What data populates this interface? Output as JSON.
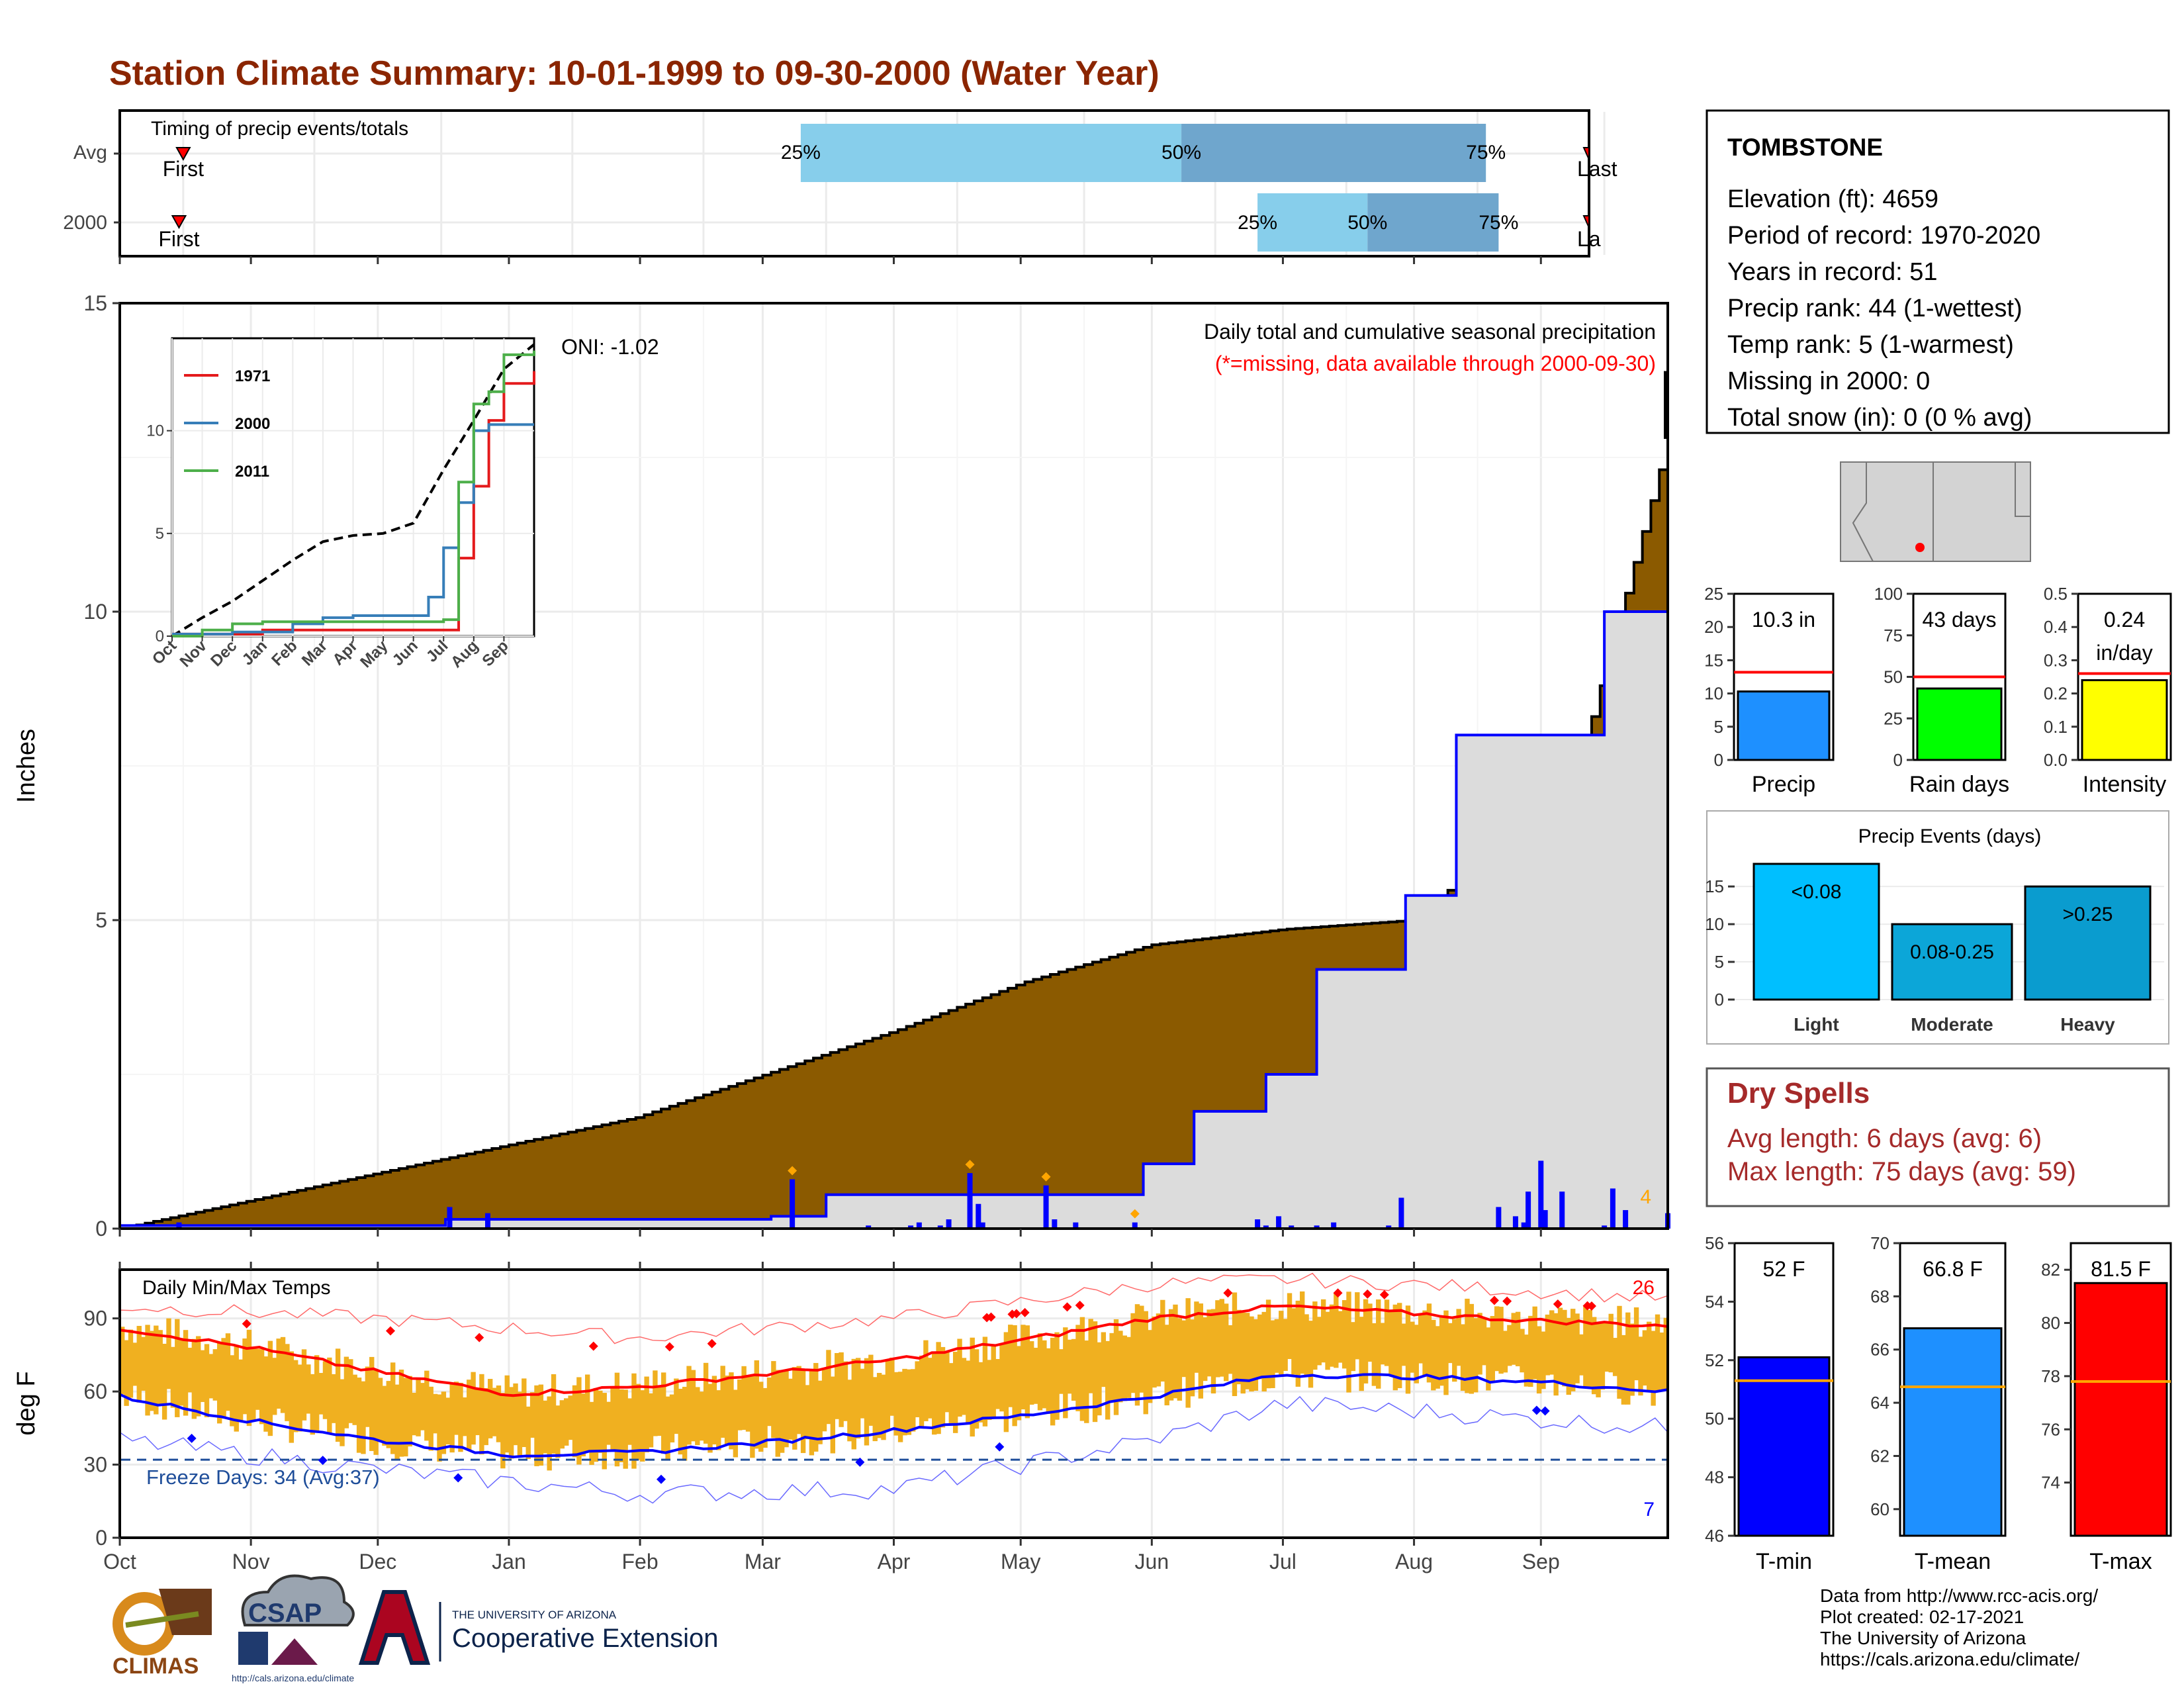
{
  "title": "Station Climate Summary: 10-01-1999 to 09-30-2000 (Water Year)",
  "colors": {
    "title": "#8B2500",
    "season_fill": "#8B5A00",
    "cumulative_line": "#0000FF",
    "avg_fill": "#DCDCDC",
    "quartile_light": "#87CEEB",
    "quartile_dark": "#6FA6CD",
    "marker": "#FF0000",
    "temp_bar": "#F0B020",
    "tmin": "#0000FF",
    "tmax": "#FF0000",
    "rain_days": "#00FF00",
    "intensity": "#FFFF00",
    "precip": "#1E90FF",
    "events": "#00BFFF",
    "dryspell": "#A52A2A"
  },
  "timing": {
    "label": "Timing of precip events/totals",
    "rows": [
      {
        "label": "Avg",
        "q25": "25%",
        "q50": "50%",
        "q75": "75%",
        "first": "First",
        "last": "Last",
        "q25_day": 161,
        "q50_day": 251,
        "q75_day": 323,
        "first_day": 15,
        "last_day": 364
      },
      {
        "label": "2000",
        "q25": "25%",
        "q50": "50%",
        "q75": "75%",
        "first": "First",
        "last": "La",
        "q25_day": 269,
        "q50_day": 295,
        "q75_day": 326,
        "first_day": 14,
        "last_day": 373
      }
    ]
  },
  "precip_panel": {
    "ylabel": "Inches",
    "yticks": [
      "0",
      "5",
      "10",
      "15"
    ],
    "heading": "Daily total and cumulative seasonal precipitation",
    "subheading": "(*=missing, data available through 2000-09-30)",
    "oni": "ONI: -1.02",
    "corner_count": "4"
  },
  "inset": {
    "yticks": [
      "0",
      "5",
      "10"
    ],
    "xticks": [
      "Oct",
      "Nov",
      "Dec",
      "Jan",
      "Feb",
      "Mar",
      "Apr",
      "May",
      "Jun",
      "Jul",
      "Aug",
      "Sep"
    ],
    "legend": [
      {
        "name": "1971",
        "color": "#E41A1C"
      },
      {
        "name": "2000",
        "color": "#377EB8"
      },
      {
        "name": "2011",
        "color": "#4DAF4A"
      }
    ]
  },
  "temp_panel": {
    "ylabel": "deg F",
    "yticks": [
      "0",
      "30",
      "60",
      "90"
    ],
    "label": "Daily Min/Max Temps",
    "freeze": "Freeze Days: 34 (Avg:37)",
    "count_high": "26",
    "count_low": "7"
  },
  "months": [
    "Oct",
    "Nov",
    "Dec",
    "Jan",
    "Feb",
    "Mar",
    "Apr",
    "May",
    "Jun",
    "Jul",
    "Aug",
    "Sep"
  ],
  "station": {
    "name": "TOMBSTONE",
    "lines": [
      "Elevation (ft): 4659",
      "Period of record: 1970-2020",
      "Years in record: 51",
      "Precip rank: 44 (1-wettest)",
      "Temp rank: 5 (1-warmest)",
      "Missing in 2000: 0",
      "Total snow (in): 0 (0 % avg)"
    ]
  },
  "summary_bars": [
    {
      "label": "Precip",
      "value_text": "10.3 in",
      "value": 10.3,
      "avg": 13.2,
      "yticks": [
        "0",
        "5",
        "10",
        "15",
        "20",
        "25"
      ],
      "ymax": 25,
      "color": "#1E90FF"
    },
    {
      "label": "Rain days",
      "value_text": "43 days",
      "value": 43,
      "avg": 50,
      "yticks": [
        "0",
        "25",
        "50",
        "75",
        "100"
      ],
      "ymax": 100,
      "color": "#00FF00"
    },
    {
      "label": "Intensity",
      "value_text": "0.24",
      "value_unit": "in/day",
      "value": 0.24,
      "avg": 0.26,
      "yticks": [
        "0.0",
        "0.1",
        "0.2",
        "0.3",
        "0.4",
        "0.5"
      ],
      "ymax": 0.5,
      "color": "#FFFF00"
    }
  ],
  "precip_events": {
    "title": "Precip Events (days)",
    "yticks": [
      "0",
      "5",
      "10",
      "15"
    ],
    "bars": [
      {
        "name": "Light",
        "label": "<0.08",
        "value": 18,
        "color": "#00BFFF"
      },
      {
        "name": "Moderate",
        "label": "0.08-0.25",
        "value": 10,
        "color": "#0CA6D8"
      },
      {
        "name": "Heavy",
        "label": ">0.25",
        "value": 15,
        "color": "#0A9CCF"
      }
    ]
  },
  "dry_spells": {
    "title": "Dry Spells",
    "avg_line": "Avg length: 6 days (avg: 6)",
    "max_line": "Max length: 75 days (avg: 59)"
  },
  "temp_bars": [
    {
      "label": "T-min",
      "value_text": "52 F",
      "value": 52.1,
      "avg": 51.3,
      "ymin": 46,
      "ymax": 56,
      "yticks": [
        "46",
        "48",
        "50",
        "52",
        "54",
        "56"
      ],
      "color": "#0000FF"
    },
    {
      "label": "T-mean",
      "value_text": "66.8 F",
      "value": 66.8,
      "avg": 64.6,
      "ymin": 59,
      "ymax": 70,
      "yticks": [
        "60",
        "62",
        "64",
        "66",
        "68",
        "70"
      ],
      "color": "#1E90FF"
    },
    {
      "label": "T-max",
      "value_text": "81.5 F",
      "value": 81.5,
      "avg": 77.8,
      "ymin": 72,
      "ymax": 83,
      "yticks": [
        "74",
        "76",
        "78",
        "80",
        "82"
      ],
      "color": "#FF0000"
    }
  ],
  "credits": [
    "Data from http://www.rcc-acis.org/",
    "Plot created: 02-17-2021",
    "The University of Arizona",
    "https://cals.arizona.edu/climate/"
  ],
  "logos": {
    "climas": "CLIMAS",
    "csap": "CSAP",
    "csap_url": "http://cals.arizona.edu/climate",
    "ua_top": "THE UNIVERSITY OF ARIZONA",
    "ua_bottom": "Cooperative Extension"
  },
  "chart_data": [
    {
      "type": "area",
      "title": "Daily total and cumulative seasonal precipitation",
      "ylabel": "Inches",
      "ylim": [
        0,
        15
      ],
      "xticks": [
        "Oct",
        "Nov",
        "Dec",
        "Jan",
        "Feb",
        "Mar",
        "Apr",
        "May",
        "Jun",
        "Jul",
        "Aug",
        "Sep"
      ],
      "series": [
        {
          "name": "avg cumulative",
          "x_day": [
            0,
            61,
            122,
            183,
            214,
            244,
            275,
            306,
            344,
            366
          ],
          "values": [
            0,
            0.9,
            1.8,
            3.2,
            4.0,
            4.6,
            4.85,
            5.0,
            7.3,
            12.8
          ]
        },
        {
          "name": "2000 cumulative",
          "x_day": [
            0,
            77,
            154,
            167,
            242,
            254,
            271,
            283,
            304,
            316,
            351,
            366
          ],
          "values": [
            0.05,
            0.15,
            0.2,
            0.55,
            1.05,
            1.9,
            2.5,
            4.2,
            5.4,
            8.0,
            10.0,
            10.3
          ]
        }
      ],
      "daily_bars": {
        "x_day": [
          14,
          78,
          87,
          159,
          166,
          177,
          187,
          189,
          194,
          196,
          201,
          203,
          204,
          219,
          221,
          226,
          240,
          269,
          271,
          274,
          277,
          283,
          287,
          300,
          303,
          326,
          330,
          332,
          333,
          336,
          337,
          341,
          351,
          353,
          356,
          366
        ],
        "values": [
          0.1,
          0.35,
          0.25,
          0.8,
          0.02,
          0.05,
          0.05,
          0.1,
          0.05,
          0.15,
          0.9,
          0.4,
          0.1,
          0.7,
          0.15,
          0.1,
          0.1,
          0.15,
          0.05,
          0.2,
          0.05,
          0.05,
          0.1,
          0.05,
          0.5,
          0.35,
          0.2,
          0.1,
          0.6,
          1.1,
          0.3,
          0.6,
          0.05,
          0.65,
          0.3,
          0.25
        ]
      }
    },
    {
      "type": "line",
      "title": "",
      "xticks": [
        "Oct",
        "Nov",
        "Dec",
        "Jan",
        "Feb",
        "Mar",
        "Apr",
        "May",
        "Jun",
        "Jul",
        "Aug",
        "Sep"
      ],
      "ylim": [
        0,
        14.5
      ],
      "series": [
        {
          "name": "avg",
          "x_month": [
            0,
            1,
            2,
            3,
            4,
            5,
            6,
            7,
            8,
            9,
            10,
            11,
            12
          ],
          "values": [
            0,
            0.9,
            1.7,
            2.7,
            3.7,
            4.6,
            4.9,
            5.0,
            5.5,
            8.1,
            10.5,
            13.0,
            14.2
          ]
        },
        {
          "name": "1971",
          "x_month": [
            0,
            1,
            2,
            3,
            4,
            5,
            6,
            7,
            8,
            8.3,
            8.7,
            9,
            9.5,
            10,
            10.5,
            11,
            12
          ],
          "values": [
            0.1,
            0.1,
            0.1,
            0.3,
            0.3,
            0.3,
            0.3,
            0.3,
            0.3,
            0.3,
            0.3,
            0.3,
            3.8,
            7.3,
            10.5,
            12.3,
            12.9
          ]
        },
        {
          "name": "2000",
          "x_month": [
            0,
            1,
            2,
            3,
            4,
            5,
            6,
            7,
            8,
            8.5,
            9,
            9.5,
            10,
            10.5,
            11,
            12
          ],
          "values": [
            0.1,
            0.1,
            0.2,
            0.2,
            0.6,
            0.9,
            1.0,
            1.0,
            1.0,
            1.9,
            4.3,
            6.5,
            10.0,
            10.3,
            10.3,
            10.3
          ]
        },
        {
          "name": "2011",
          "x_month": [
            0,
            1,
            2,
            3,
            4,
            5,
            6,
            7,
            8,
            8.5,
            9,
            9.5,
            10,
            10.5,
            11,
            12
          ],
          "values": [
            0,
            0.3,
            0.6,
            0.7,
            0.7,
            0.7,
            0.7,
            0.7,
            0.7,
            0.7,
            0.8,
            7.5,
            11.3,
            11.9,
            13.7,
            13.9
          ]
        }
      ]
    },
    {
      "type": "line",
      "title": "Daily Min/Max Temps",
      "ylabel": "deg F",
      "ylim": [
        0,
        110
      ],
      "xticks": [
        "Oct",
        "Nov",
        "Dec",
        "Jan",
        "Feb",
        "Mar",
        "Apr",
        "May",
        "Jun",
        "Jul",
        "Aug",
        "Sep"
      ],
      "series": [
        {
          "name": "avg max",
          "x_day": [
            0,
            31,
            61,
            92,
            123,
            152,
            183,
            213,
            244,
            275,
            306,
            335,
            366
          ],
          "values": [
            86,
            78,
            68,
            59,
            62,
            67,
            73,
            81,
            90,
            95,
            92,
            89,
            87
          ]
        },
        {
          "name": "avg min",
          "x_day": [
            0,
            31,
            61,
            92,
            123,
            152,
            183,
            213,
            244,
            275,
            306,
            335,
            366
          ],
          "values": [
            58,
            48,
            40,
            34,
            35,
            39,
            44,
            50,
            58,
            67,
            66,
            64,
            60
          ]
        },
        {
          "name": "record max",
          "x_day": [
            0,
            61,
            122,
            183,
            244,
            275,
            306,
            366
          ],
          "values": [
            95,
            90,
            82,
            90,
            104,
            106,
            104,
            98
          ]
        },
        {
          "name": "record min",
          "x_day": [
            0,
            61,
            122,
            183,
            244,
            275,
            306,
            366
          ],
          "values": [
            40,
            28,
            18,
            20,
            40,
            55,
            52,
            45
          ]
        }
      ],
      "freeze_threshold": 32
    },
    {
      "type": "bar",
      "title": "Precip Events (days)",
      "categories": [
        "Light",
        "Moderate",
        "Heavy"
      ],
      "values": [
        18,
        10,
        15
      ],
      "ylim": [
        0,
        18
      ]
    },
    {
      "type": "bar",
      "categories": [
        "Precip",
        "Rain days",
        "Intensity"
      ],
      "series": [
        {
          "name": "",
          "values": [
            10.3,
            43,
            0.24
          ]
        }
      ]
    },
    {
      "type": "bar",
      "categories": [
        "T-min",
        "T-mean",
        "T-max"
      ],
      "series": [
        {
          "name": "",
          "values": [
            52.1,
            66.8,
            81.5
          ]
        }
      ]
    }
  ]
}
